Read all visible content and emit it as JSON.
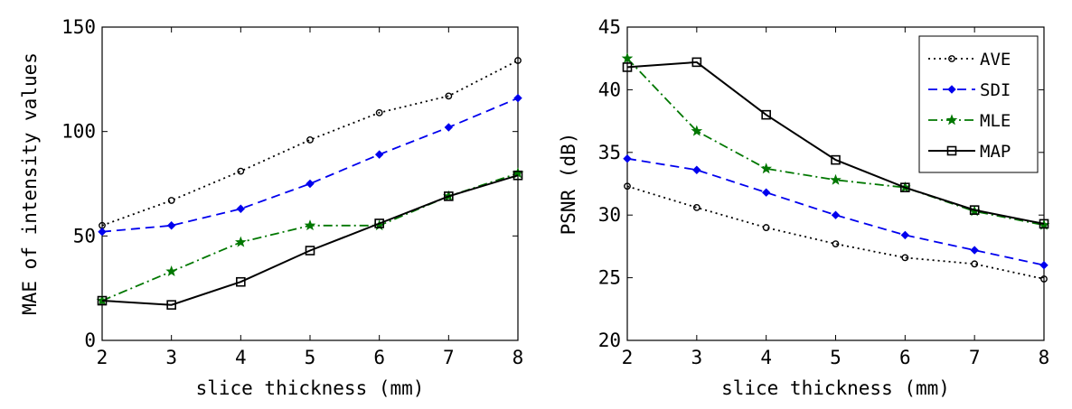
{
  "chart_data": [
    {
      "type": "line",
      "title": "",
      "xlabel": "slice thickness (mm)",
      "ylabel": "MAE of intensity values",
      "xlim": [
        2,
        8
      ],
      "ylim": [
        0,
        150
      ],
      "x": [
        2,
        3,
        4,
        5,
        6,
        7,
        8
      ],
      "xticks": [
        "2",
        "3",
        "4",
        "5",
        "6",
        "7",
        "8"
      ],
      "yticks": [
        "0",
        "50",
        "100",
        "150"
      ],
      "grid": false,
      "legend": false,
      "series": [
        {
          "name": "AVE",
          "color": "#000000",
          "style": "dotted",
          "marker": "circle",
          "values": [
            55,
            67,
            81,
            96,
            109,
            117,
            134
          ]
        },
        {
          "name": "SDI",
          "color": "#0000ee",
          "style": "dashed",
          "marker": "diamond",
          "values": [
            52,
            55,
            63,
            75,
            89,
            102,
            116
          ]
        },
        {
          "name": "MLE",
          "color": "#007700",
          "style": "dashdot",
          "marker": "star",
          "values": [
            19,
            33,
            47,
            55,
            55,
            69,
            80
          ]
        },
        {
          "name": "MAP",
          "color": "#000000",
          "style": "solid",
          "marker": "square",
          "values": [
            19,
            17,
            28,
            43,
            56,
            69,
            79
          ]
        }
      ]
    },
    {
      "type": "line",
      "title": "",
      "xlabel": "slice thickness (mm)",
      "ylabel": "PSNR (dB)",
      "xlim": [
        2,
        8
      ],
      "ylim": [
        20,
        45
      ],
      "x": [
        2,
        3,
        4,
        5,
        6,
        7,
        8
      ],
      "xticks": [
        "2",
        "3",
        "4",
        "5",
        "6",
        "7",
        "8"
      ],
      "yticks": [
        "20",
        "25",
        "30",
        "35",
        "40",
        "45"
      ],
      "grid": false,
      "legend": "top-right",
      "series": [
        {
          "name": "AVE",
          "color": "#000000",
          "style": "dotted",
          "marker": "circle",
          "values": [
            32.3,
            30.6,
            29.0,
            27.7,
            26.6,
            26.1,
            24.9
          ]
        },
        {
          "name": "SDI",
          "color": "#0000ee",
          "style": "dashed",
          "marker": "diamond",
          "values": [
            34.5,
            33.6,
            31.8,
            30.0,
            28.4,
            27.2,
            26.0
          ]
        },
        {
          "name": "MLE",
          "color": "#007700",
          "style": "dashdot",
          "marker": "star",
          "values": [
            42.5,
            36.7,
            33.7,
            32.8,
            32.2,
            30.3,
            29.2
          ]
        },
        {
          "name": "MAP",
          "color": "#000000",
          "style": "solid",
          "marker": "square",
          "values": [
            41.8,
            42.2,
            38.0,
            34.4,
            32.2,
            30.4,
            29.3
          ]
        }
      ]
    }
  ]
}
